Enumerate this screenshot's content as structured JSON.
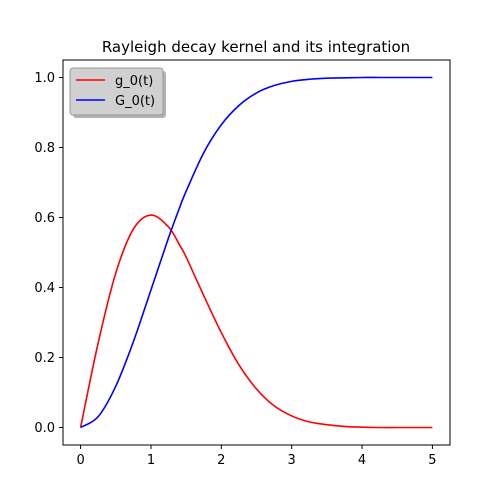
{
  "chart_data": {
    "type": "line",
    "title": "Rayleigh decay kernel and its integration",
    "xlabel": "",
    "ylabel": "",
    "xlim": [
      -0.25,
      5.25
    ],
    "ylim": [
      -0.05,
      1.05
    ],
    "xticks": [
      "0",
      "1",
      "2",
      "3",
      "4",
      "5"
    ],
    "yticks": [
      "0.0",
      "0.2",
      "0.4",
      "0.6",
      "0.8",
      "1.0"
    ],
    "grid": false,
    "legend_position": "top-left",
    "x": [
      0,
      0.25,
      0.5,
      0.75,
      1,
      1.25,
      1.414,
      1.5,
      1.75,
      2,
      2.25,
      2.5,
      2.75,
      3,
      3.25,
      3.5,
      3.75,
      4,
      4.25,
      4.5,
      4.75,
      5
    ],
    "series": [
      {
        "name": "g_0(t)",
        "color": "#ff0000",
        "values": [
          0,
          0.242,
          0.441,
          0.567,
          0.607,
          0.573,
          0.519,
          0.487,
          0.377,
          0.271,
          0.179,
          0.11,
          0.062,
          0.033,
          0.016,
          0.008,
          0.003,
          0.001,
          0.0,
          0.0,
          0.0,
          0.0
        ]
      },
      {
        "name": "G_0(t)",
        "color": "#0000ff",
        "values": [
          0,
          0.031,
          0.118,
          0.245,
          0.393,
          0.542,
          0.632,
          0.675,
          0.785,
          0.865,
          0.92,
          0.956,
          0.977,
          0.989,
          0.995,
          0.998,
          0.999,
          1.0,
          1.0,
          1.0,
          1.0,
          1.0
        ]
      }
    ]
  }
}
